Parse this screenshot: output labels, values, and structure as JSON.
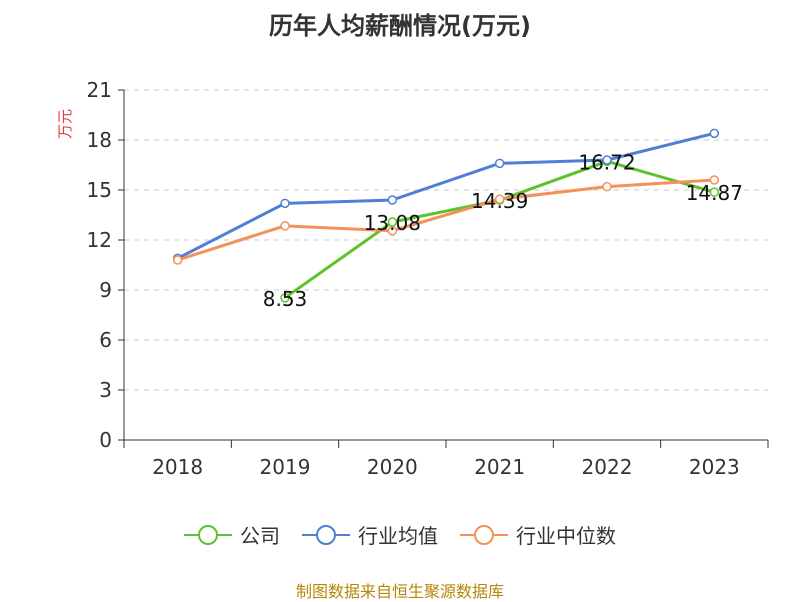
{
  "chart_data": {
    "type": "line",
    "title": "历年人均薪酬情况(万元)",
    "ylabel": "万元",
    "xlabel": "",
    "categories": [
      "2018",
      "2019",
      "2020",
      "2021",
      "2022",
      "2023"
    ],
    "ylim": [
      0,
      21
    ],
    "yticks": [
      0,
      3,
      6,
      9,
      12,
      15,
      18,
      21
    ],
    "grid": "horizontal-dashed",
    "legend_position": "bottom",
    "series": [
      {
        "name": "公司",
        "color": "#5cc32a",
        "values": [
          null,
          8.53,
          13.08,
          14.39,
          16.72,
          14.87
        ],
        "labels": [
          "",
          "8.53",
          "13.08",
          "14.39",
          "16.72",
          "14.87"
        ]
      },
      {
        "name": "行业均值",
        "color": "#4e7fd6",
        "values": [
          10.9,
          14.2,
          14.4,
          16.6,
          16.8,
          18.4
        ]
      },
      {
        "name": "行业中位数",
        "color": "#f5905a",
        "values": [
          10.8,
          12.85,
          12.55,
          14.45,
          15.2,
          15.6
        ]
      }
    ]
  },
  "footer": {
    "source": "制图数据来自恒生聚源数据库"
  }
}
